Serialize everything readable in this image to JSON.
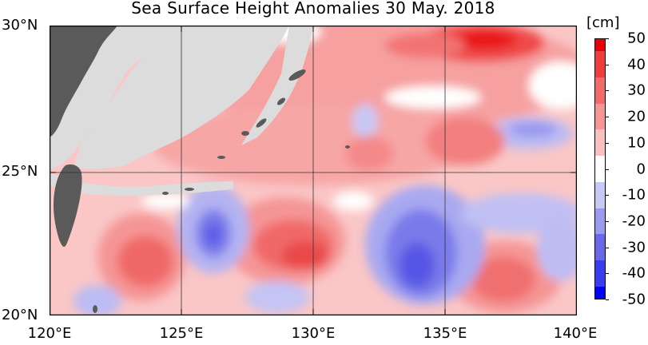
{
  "title": "Sea Surface Height Anomalies  30 May. 2018",
  "map": {
    "lat_labels": [
      "30°N",
      "25°N",
      "20°N"
    ],
    "lon_labels": [
      "120°E",
      "125°E",
      "130°E",
      "135°E",
      "140°E"
    ],
    "land_color": "#5a5a5a",
    "no_data_color": "#dcdcdc",
    "grid_color": "#333333"
  },
  "colorbar": {
    "unit": "[cm]",
    "ticks": [
      "50",
      "40",
      "30",
      "20",
      "10",
      "0",
      "-10",
      "-20",
      "-30",
      "-40",
      "-50"
    ],
    "colors_top_to_bottom": [
      "#e8000b",
      "#f03c3c",
      "#f26b6b",
      "#f59595",
      "#fabfbf",
      "#ffffff",
      "#c8c8f5",
      "#9a9aef",
      "#6868e8",
      "#3b3bef",
      "#0000ff"
    ]
  }
}
